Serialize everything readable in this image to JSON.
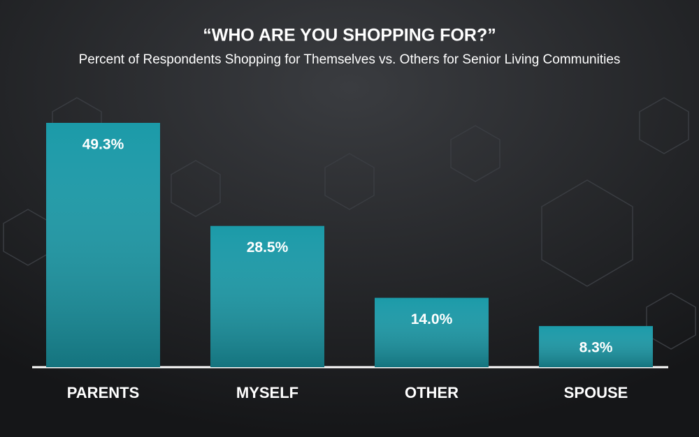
{
  "chart_data": {
    "type": "bar",
    "title": "“WHO ARE YOU SHOPPING FOR?”",
    "subtitle": "Percent of Respondents Shopping for Themselves vs. Others for Senior Living Communities",
    "categories": [
      "PARENTS",
      "MYSELF",
      "OTHER",
      "SPOUSE"
    ],
    "values": [
      49.3,
      28.5,
      14.0,
      8.3
    ],
    "value_labels": [
      "49.3%",
      "28.5%",
      "14.0%",
      "8.3%"
    ],
    "color": "#1b9aa8"
  }
}
